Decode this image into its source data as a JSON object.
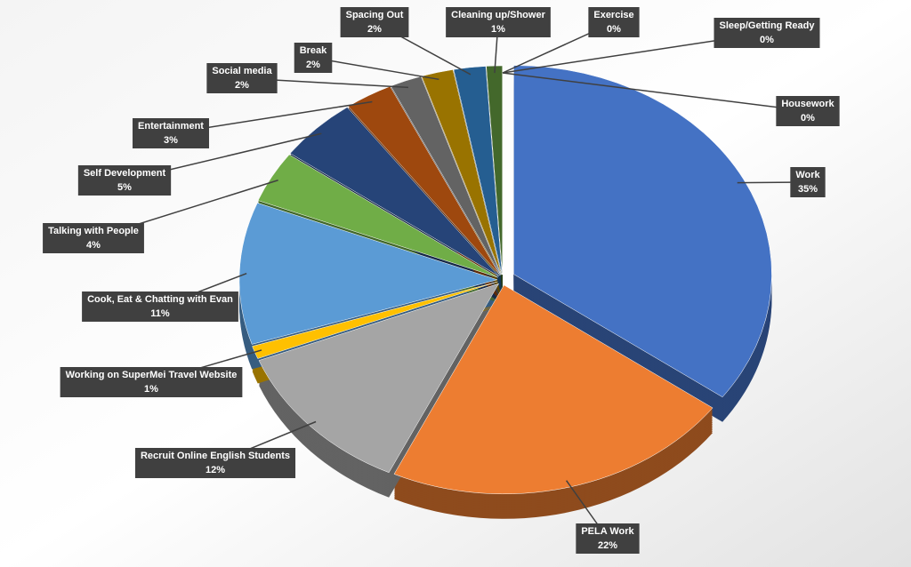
{
  "chart_data": {
    "type": "pie",
    "categories": [
      "Work",
      "PELA Work",
      "Recruit Online English Students",
      "Working on SuperMei Travel Website",
      "Cook, Eat & Chatting with Evan",
      "Talking with People",
      "Self Development",
      "Entertainment",
      "Social media",
      "Break",
      "Spacing Out",
      "Cleaning up/Shower",
      "Exercise",
      "Sleep/Getting Ready",
      "Housework"
    ],
    "values": [
      35,
      22,
      12,
      1,
      11,
      4,
      5,
      3,
      2,
      2,
      2,
      1,
      0,
      0,
      0
    ],
    "value_labels": [
      "35%",
      "22%",
      "12%",
      "1%",
      "11%",
      "4%",
      "5%",
      "3%",
      "2%",
      "2%",
      "2%",
      "1%",
      "0%",
      "0%",
      "0%"
    ],
    "colors": [
      "#4472c4",
      "#ed7d31",
      "#a5a5a5",
      "#ffc000",
      "#5b9bd5",
      "#70ad47",
      "#264478",
      "#9e480e",
      "#636363",
      "#997300",
      "#255e91",
      "#43682b",
      "#698ed0",
      "#f1975a",
      "#b7b7b7"
    ]
  }
}
